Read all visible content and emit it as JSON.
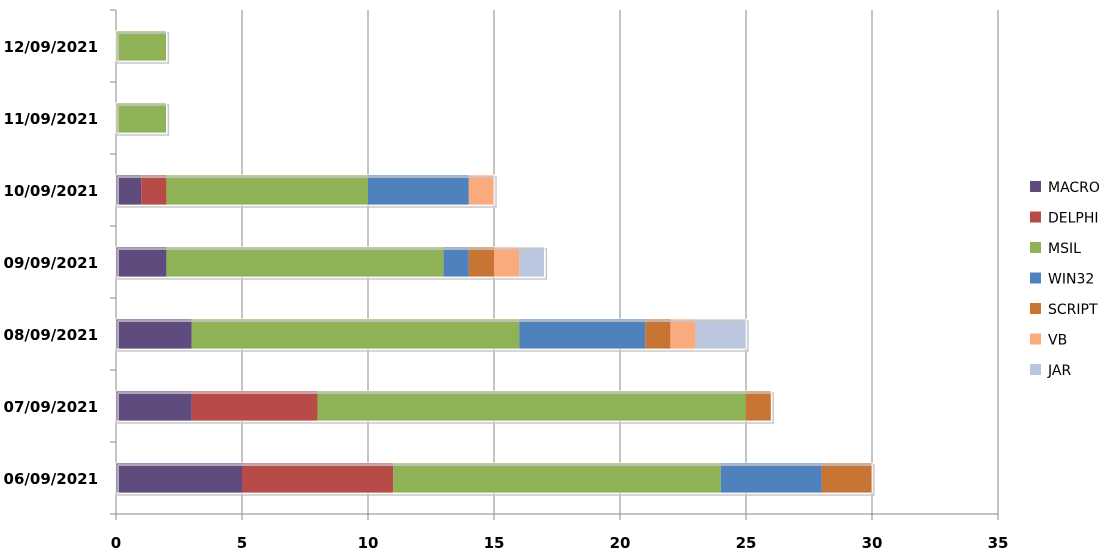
{
  "chart_data": {
    "type": "bar",
    "orientation": "horizontal",
    "stacked": true,
    "categories": [
      "06/09/2021",
      "07/09/2021",
      "08/09/2021",
      "09/09/2021",
      "10/09/2021",
      "11/09/2021",
      "12/09/2021"
    ],
    "series": [
      {
        "name": "MACRO",
        "color": "#5f4b7e",
        "values": [
          5,
          3,
          3,
          2,
          1,
          0,
          0
        ]
      },
      {
        "name": "DELPHI",
        "color": "#b84a48",
        "values": [
          6,
          5,
          0,
          0,
          1,
          0,
          0
        ]
      },
      {
        "name": "MSIL",
        "color": "#8eb255",
        "values": [
          13,
          17,
          13,
          11,
          8,
          2,
          2
        ]
      },
      {
        "name": "WIN32",
        "color": "#4f81bd",
        "values": [
          4,
          0,
          5,
          1,
          4,
          0,
          0
        ]
      },
      {
        "name": "SCRIPT",
        "color": "#c87533",
        "values": [
          2,
          1,
          1,
          1,
          0,
          0,
          0
        ]
      },
      {
        "name": "VB",
        "color": "#f9ab7e",
        "values": [
          0,
          0,
          1,
          1,
          1,
          0,
          0
        ]
      },
      {
        "name": "JAR",
        "color": "#b9c6dd",
        "values": [
          0,
          0,
          2,
          1,
          0,
          0,
          0
        ]
      }
    ],
    "xlim": [
      0,
      35
    ],
    "xticks": [
      "0",
      "5",
      "10",
      "15",
      "20",
      "25",
      "30",
      "35"
    ],
    "grid": true,
    "legend_position": "right"
  }
}
